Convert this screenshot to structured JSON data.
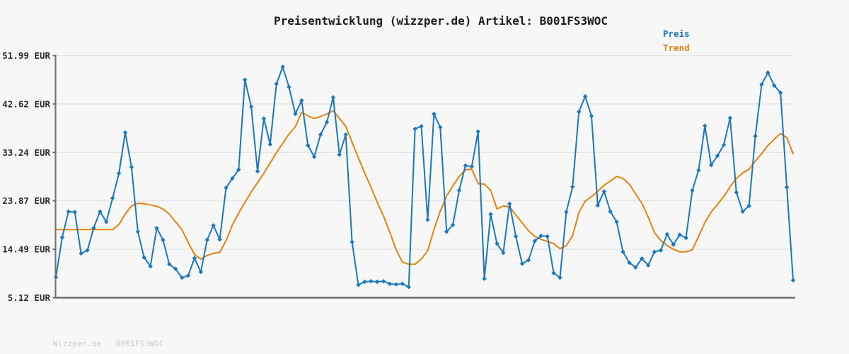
{
  "chart_data": {
    "type": "line",
    "title": "Preisentwicklung (wizzper.de) Artikel: B001FS3WOC",
    "xlabel": "",
    "ylabel": "",
    "ylim": [
      5.12,
      51.99
    ],
    "grid": "horizontal",
    "legend_position": "top-right",
    "background_color": "#f7f7f7",
    "gridline_color": "#e3e3e3",
    "axis_color": "#6e6e6e",
    "tick_label_color": "#2d2d2d",
    "y_ticks": [
      {
        "value": 51.99,
        "label": "51.99 EUR"
      },
      {
        "value": 42.62,
        "label": "42.62 EUR"
      },
      {
        "value": 33.24,
        "label": "33.24 EUR"
      },
      {
        "value": 23.87,
        "label": "23.87 EUR"
      },
      {
        "value": 14.49,
        "label": "14.49 EUR"
      },
      {
        "value": 5.12,
        "label": "5.12 EUR"
      }
    ],
    "x_axis": {
      "tick_labels_visible": false,
      "point_count": 118
    },
    "series": [
      {
        "name": "Preis",
        "color": "#1b78be",
        "marker": "diamond",
        "values": [
          9.1,
          16.8,
          21.8,
          21.7,
          13.7,
          14.3,
          18.6,
          21.8,
          19.8,
          24.4,
          29.2,
          37.1,
          30.4,
          17.9,
          12.9,
          11.2,
          18.6,
          16.3,
          11.6,
          10.7,
          9.0,
          9.4,
          12.8,
          10.1,
          16.3,
          19.1,
          16.4,
          26.4,
          28.2,
          29.9,
          47.3,
          42.1,
          29.6,
          39.8,
          34.8,
          46.5,
          49.8,
          45.9,
          40.7,
          43.3,
          34.6,
          32.4,
          36.7,
          39.1,
          43.9,
          32.8,
          36.7,
          15.9,
          7.6,
          8.2,
          8.3,
          8.2,
          8.3,
          7.8,
          7.7,
          7.8,
          7.2,
          37.8,
          38.3,
          20.2,
          40.7,
          38.1,
          17.9,
          19.2,
          25.9,
          30.7,
          30.5,
          37.3,
          8.8,
          21.3,
          15.6,
          13.8,
          23.3,
          17.0,
          11.7,
          12.4,
          16.1,
          17.1,
          17.0,
          9.9,
          9.0,
          21.7,
          26.6,
          41.1,
          44.1,
          40.3,
          23.0,
          25.7,
          21.8,
          19.8,
          14.0,
          11.9,
          11.0,
          12.7,
          11.4,
          14.0,
          14.3,
          17.4,
          15.4,
          17.3,
          16.7,
          25.9,
          29.8,
          38.4,
          30.8,
          32.6,
          34.7,
          39.9,
          25.5,
          21.8,
          22.9,
          36.4,
          46.4,
          48.7,
          46.2,
          44.8,
          26.5,
          8.5
        ]
      },
      {
        "name": "Trend",
        "color": "#e2830f",
        "marker": "none",
        "values": [
          18.3,
          18.3,
          18.3,
          18.3,
          18.3,
          18.3,
          18.3,
          18.3,
          18.3,
          18.3,
          19.3,
          21.3,
          22.9,
          23.4,
          23.3,
          23.1,
          22.8,
          22.3,
          21.3,
          19.8,
          18.3,
          15.8,
          13.5,
          12.6,
          13.3,
          13.7,
          13.9,
          16.2,
          19.2,
          21.5,
          23.6,
          25.6,
          27.4,
          29.2,
          31.2,
          33.2,
          35.0,
          36.8,
          38.2,
          41.0,
          40.3,
          39.8,
          40.2,
          40.7,
          41.3,
          39.8,
          38.3,
          35.2,
          32.2,
          29.3,
          26.5,
          23.6,
          20.9,
          17.8,
          14.4,
          12.0,
          11.6,
          11.6,
          12.6,
          14.2,
          18.3,
          21.9,
          24.8,
          26.8,
          28.6,
          29.9,
          30.0,
          27.2,
          27.1,
          25.9,
          22.3,
          22.9,
          22.7,
          21.1,
          19.6,
          18.1,
          17.0,
          16.4,
          16.0,
          15.6,
          14.6,
          15.2,
          17.1,
          21.6,
          23.8,
          24.7,
          25.7,
          26.9,
          27.7,
          28.6,
          28.2,
          27.1,
          25.2,
          23.4,
          20.7,
          17.7,
          16.2,
          15.2,
          14.5,
          14.0,
          14.0,
          14.4,
          17.0,
          19.7,
          21.7,
          23.2,
          24.7,
          26.6,
          28.2,
          29.3,
          30.0,
          31.6,
          33.0,
          34.6,
          35.8,
          36.9,
          36.1,
          33.0
        ]
      }
    ]
  },
  "footer": {
    "watermark": "Wizzper.de - B001FS3WOC"
  }
}
